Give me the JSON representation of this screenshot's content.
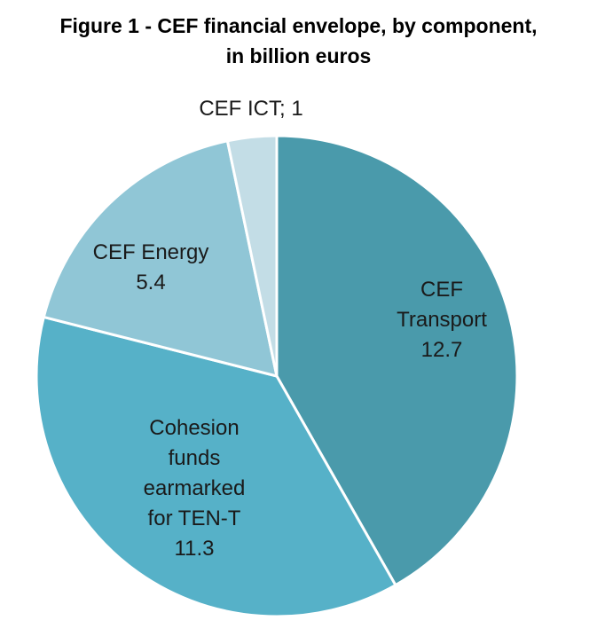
{
  "chart_data": {
    "type": "pie",
    "title_lines": [
      "Figure 1 - CEF financial envelope, by component,",
      "in billion euros"
    ],
    "slices": [
      {
        "name": "CEF Transport",
        "value": 12.7,
        "label_lines": [
          "CEF",
          "Transport",
          "12.7"
        ],
        "color": "#4a9aab"
      },
      {
        "name": "Cohesion funds earmarked for TEN-T",
        "value": 11.3,
        "label_lines": [
          "Cohesion",
          "funds",
          "earmarked",
          "for TEN-T",
          "11.3"
        ],
        "color": "#56b1c8"
      },
      {
        "name": "CEF Energy",
        "value": 5.4,
        "label_lines": [
          "CEF Energy",
          "5.4"
        ],
        "color": "#90c6d6"
      },
      {
        "name": "CEF ICT",
        "value": 1,
        "label_lines": [
          "CEF ICT; 1"
        ],
        "color": "#c3dde6"
      }
    ],
    "start": "top",
    "direction": "clockwise",
    "legend": "none"
  }
}
